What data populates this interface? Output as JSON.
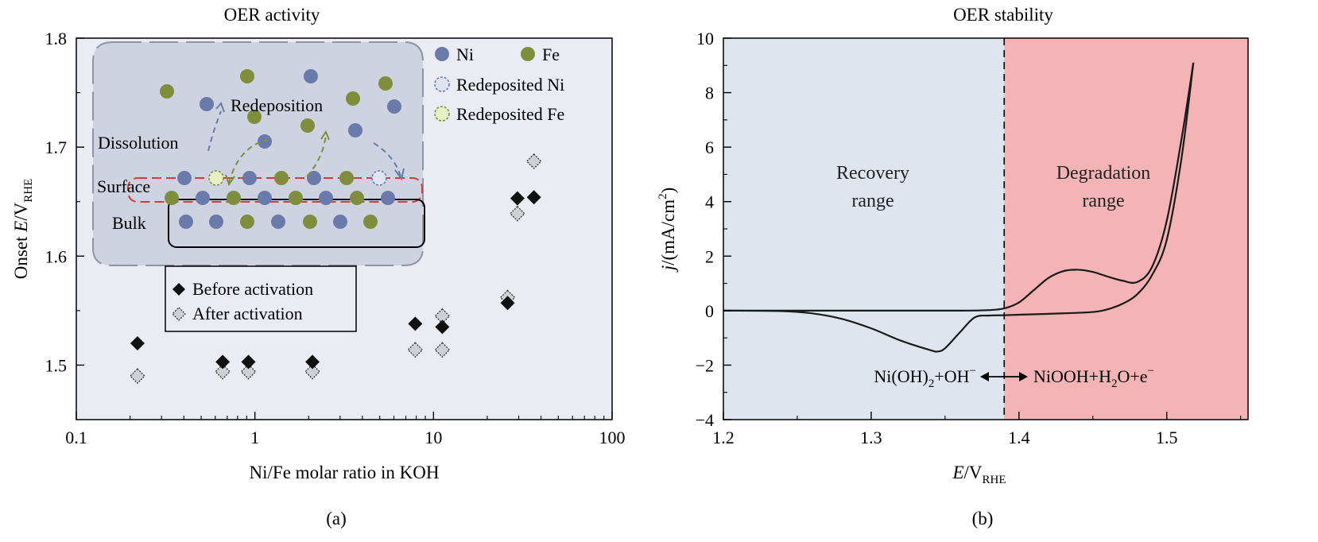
{
  "panel_labels": [
    "(a)",
    "(b)"
  ],
  "colors": {
    "plot_bg": "#ebebf4",
    "inset_bg": "#cfd3e1",
    "ni": "#6a7bab",
    "fe": "#808d3c",
    "recovery": "#dfe5ef",
    "degradation": "#f4b3b4",
    "curve": "#1a1a1a"
  },
  "chart_data": [
    {
      "type": "scatter",
      "title": "OER activity",
      "xlabel": "Ni/Fe molar ratio in KOH",
      "ylabel_main": "Onset ",
      "ylabel_italic": "E",
      "ylabel_rest": "/V",
      "ylabel_sub": "RHE",
      "xscale": "log",
      "xlim": [
        0.1,
        100
      ],
      "ylim": [
        1.45,
        1.8
      ],
      "xticks": [
        0.1,
        1,
        10,
        100
      ],
      "xtick_labels": [
        "0.1",
        "1",
        "10",
        "100"
      ],
      "yticks": [
        1.5,
        1.6,
        1.7,
        1.8
      ],
      "ytick_labels": [
        "1.5",
        "1.6",
        "1.7",
        "1.8"
      ],
      "series": [
        {
          "name": "Before activation",
          "marker": "diamond-filled",
          "points": [
            [
              0.22,
              1.52
            ],
            [
              0.66,
              1.503
            ],
            [
              0.92,
              1.503
            ],
            [
              2.1,
              1.503
            ],
            [
              7.9,
              1.538
            ],
            [
              11.2,
              1.535
            ],
            [
              26,
              1.557
            ],
            [
              29.5,
              1.653
            ],
            [
              36.5,
              1.654
            ]
          ]
        },
        {
          "name": "After activation",
          "marker": "diamond-hatched",
          "points": [
            [
              0.22,
              1.49
            ],
            [
              0.66,
              1.494
            ],
            [
              0.92,
              1.494
            ],
            [
              2.1,
              1.494
            ],
            [
              7.9,
              1.514
            ],
            [
              11.2,
              1.514
            ],
            [
              11.2,
              1.545
            ],
            [
              26,
              1.562
            ],
            [
              29.5,
              1.639
            ],
            [
              36.5,
              1.687
            ]
          ]
        }
      ],
      "atom_legend": [
        {
          "label": "Ni",
          "kind": "ni"
        },
        {
          "label": "Fe",
          "kind": "fe"
        },
        {
          "label": "Redeposited Ni",
          "kind": "ni-dashed"
        },
        {
          "label": "Redeposited Fe",
          "kind": "fe-dashed"
        }
      ],
      "inset_labels": {
        "redeposition": "Redeposition",
        "dissolution": "Dissolution",
        "surface": "Surface",
        "bulk": "Bulk"
      }
    },
    {
      "type": "line",
      "title": "OER stability",
      "xlabel_italic": "E",
      "xlabel_rest": "/V",
      "xlabel_sub": "RHE",
      "ylabel_italic": "j",
      "ylabel_rest": "/(mA/cm",
      "ylabel_sup": "2",
      "ylabel_close": ")",
      "xlim": [
        1.2,
        1.555
      ],
      "ylim": [
        -4,
        10
      ],
      "xticks": [
        1.2,
        1.3,
        1.4,
        1.5
      ],
      "xtick_labels": [
        "1.2",
        "1.3",
        "1.4",
        "1.5"
      ],
      "yticks": [
        -4,
        -2,
        0,
        2,
        4,
        6,
        8,
        10
      ],
      "ytick_labels": [
        "−4",
        "−2",
        "0",
        "2",
        "4",
        "6",
        "8",
        "10"
      ],
      "divider_x": 1.39,
      "regions": [
        {
          "name": "Recovery range",
          "line1": "Recovery",
          "line2": "range"
        },
        {
          "name": "Degradation range",
          "line1": "Degradation",
          "line2": "range"
        }
      ],
      "reaction_left": {
        "a": "Ni(OH)",
        "a_sub": "2",
        "b": "+OH",
        "b_sup": "−"
      },
      "reaction_right": {
        "a": "NiOOH+H",
        "a_sub": "2",
        "b": "O+e",
        "b_sup": "−"
      },
      "series": [
        {
          "name": "anodic sweep",
          "x": [
            1.2,
            1.3,
            1.36,
            1.38,
            1.39,
            1.4,
            1.41,
            1.42,
            1.43,
            1.44,
            1.45,
            1.46,
            1.47,
            1.48,
            1.49,
            1.5,
            1.51,
            1.518
          ],
          "y": [
            0,
            0,
            0,
            0.02,
            0.08,
            0.3,
            0.75,
            1.2,
            1.45,
            1.5,
            1.42,
            1.25,
            1.1,
            1.05,
            1.6,
            3.3,
            6.3,
            9.1
          ]
        },
        {
          "name": "cathodic sweep",
          "x": [
            1.518,
            1.51,
            1.5,
            1.49,
            1.48,
            1.47,
            1.46,
            1.45,
            1.43,
            1.4,
            1.39,
            1.38,
            1.37,
            1.36,
            1.35,
            1.345,
            1.34,
            1.32,
            1.3,
            1.28,
            1.26,
            1.24,
            1.2
          ],
          "y": [
            9.1,
            5.6,
            2.6,
            1.3,
            0.6,
            0.25,
            0.05,
            -0.05,
            -0.1,
            -0.15,
            -0.17,
            -0.18,
            -0.25,
            -0.8,
            -1.38,
            -1.5,
            -1.45,
            -1.1,
            -0.65,
            -0.3,
            -0.1,
            -0.02,
            0
          ]
        }
      ]
    }
  ]
}
